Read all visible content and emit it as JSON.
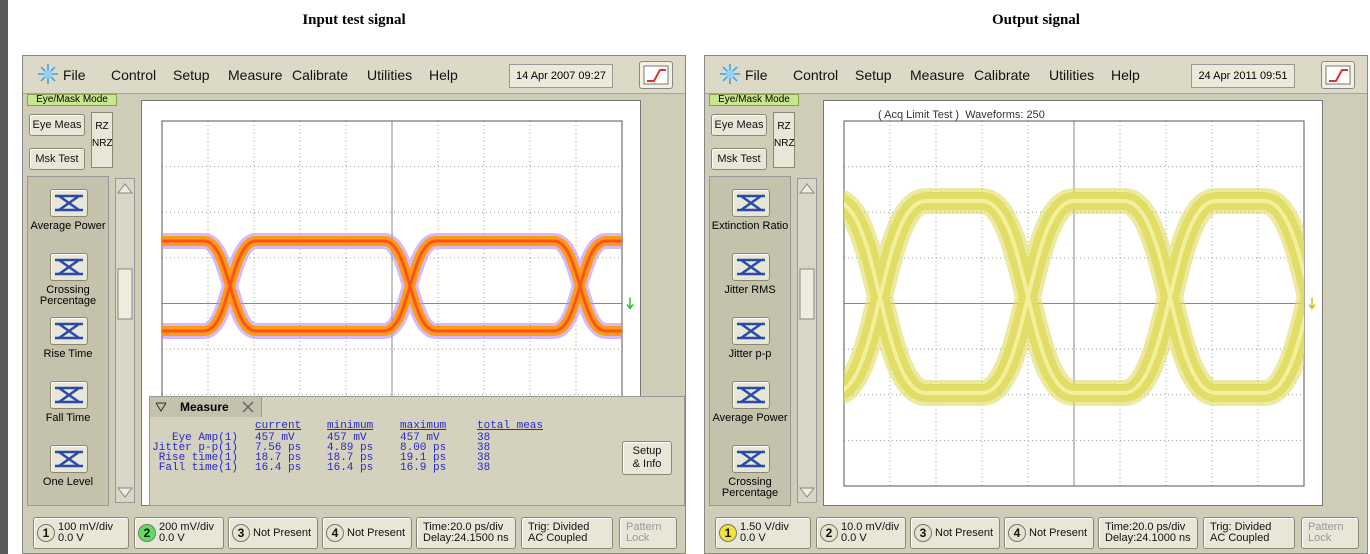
{
  "titles": [
    "Input test signal",
    "Output signal"
  ],
  "panels": [
    {
      "menu": [
        "File",
        "Control",
        "Setup",
        "Measure",
        "Calibrate",
        "Utilities",
        "Help"
      ],
      "datetime": "14 Apr 2007  09:27",
      "mode": "Eye/Mask Mode",
      "top_buttons": [
        "Eye Meas",
        "Msk Test"
      ],
      "rz": "RZ",
      "nrz": "NRZ",
      "tools": [
        "Average Power",
        "Crossing Percentage",
        "Rise Time",
        "Fall Time",
        "One Level"
      ],
      "measure": {
        "title": "Measure",
        "headers": [
          "current",
          "minimum",
          "maximum",
          "total meas"
        ],
        "rows": [
          [
            "Eye Amp(1)",
            "457 mV",
            "457 mV",
            "457 mV",
            "38"
          ],
          [
            "Jitter p-p(1)",
            "7.56 ps",
            "4.89 ps",
            "8.00 ps",
            "38"
          ],
          [
            "Rise time(1)",
            "18.7 ps",
            "18.7 ps",
            "19.1 ps",
            "38"
          ],
          [
            "Fall time(1)",
            "16.4 ps",
            "16.4 ps",
            "16.9 ps",
            "38"
          ]
        ],
        "setup": [
          "Setup",
          "& Info"
        ]
      },
      "trace_color": "#ff9900",
      "footer": [
        {
          "num": "1",
          "lines": [
            "100 mV/div",
            "0.0 V"
          ],
          "color": "#e6e2cc"
        },
        {
          "num": "2",
          "lines": [
            "200 mV/div",
            "0.0 V"
          ],
          "color": "#5ee05e"
        },
        {
          "num": "3",
          "lines": [
            "Not Present"
          ],
          "color": "#e6e2cc"
        },
        {
          "num": "4",
          "lines": [
            "Not Present"
          ],
          "color": "#e6e2cc"
        },
        {
          "lines": [
            "Time:20.0 ps/div",
            "Delay:24.1500 ns"
          ]
        },
        {
          "lines": [
            "Trig: Divided",
            "AC Coupled"
          ]
        },
        {
          "lines": [
            "Pattern",
            "Lock"
          ]
        }
      ]
    },
    {
      "menu": [
        "File",
        "Control",
        "Setup",
        "Measure",
        "Calibrate",
        "Utilities",
        "Help"
      ],
      "datetime": "24 Apr 2011  09:51",
      "mode": "Eye/Mask Mode",
      "top_buttons": [
        "Eye Meas",
        "Msk Test"
      ],
      "rz": "RZ",
      "nrz": "NRZ",
      "tools": [
        "Extinction Ratio",
        "Jitter RMS",
        "Jitter p-p",
        "Average Power",
        "Crossing Percentage"
      ],
      "acq": "( Acq Limit Test )  Waveforms: 250",
      "trace_color": "#e0dc60",
      "footer": [
        {
          "num": "1",
          "lines": [
            "1.50 V/div",
            "0.0 V"
          ],
          "color": "#f2e23a"
        },
        {
          "num": "2",
          "lines": [
            "10.0 mV/div",
            "0.0 V"
          ],
          "color": "#e6e2cc"
        },
        {
          "num": "3",
          "lines": [
            "Not Present"
          ],
          "color": "#e6e2cc"
        },
        {
          "num": "4",
          "lines": [
            "Not Present"
          ],
          "color": "#e6e2cc"
        },
        {
          "lines": [
            "Time:20.0 ps/div",
            "Delay:24.1000 ns"
          ]
        },
        {
          "lines": [
            "Trig: Divided",
            "AC Coupled"
          ]
        },
        {
          "lines": [
            "Pattern",
            "Lock"
          ]
        }
      ]
    }
  ]
}
